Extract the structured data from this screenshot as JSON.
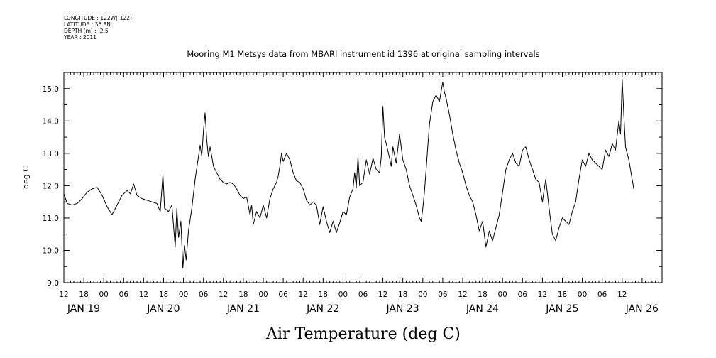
{
  "header_meta": {
    "longitude": "LONGITUDE : 122W(-122)",
    "latitude": "LATITUDE : 36.8N",
    "depth": "DEPTH (m) : -2.5",
    "year": "YEAR : 2011"
  },
  "chart_data": {
    "type": "line",
    "title": "Mooring M1 Metsys data from MBARI instrument id 1396 at original sampling intervals",
    "xlabel": "Air Temperature (deg C)",
    "ylabel": "deg C",
    "xlim": [
      12,
      192
    ],
    "ylim": [
      9.0,
      15.5
    ],
    "y_ticks": [
      "9.0",
      "10.0",
      "11.0",
      "12.0",
      "13.0",
      "14.0",
      "15.0"
    ],
    "y_tick_values": [
      9.0,
      10.0,
      11.0,
      12.0,
      13.0,
      14.0,
      15.0
    ],
    "x_hour_ticks": [
      "12",
      "18",
      "00",
      "06",
      "12",
      "18",
      "00",
      "06",
      "12",
      "18",
      "00",
      "06",
      "12",
      "18",
      "00",
      "06",
      "12",
      "18",
      "00",
      "06",
      "12",
      "18",
      "00",
      "06",
      "12",
      "18",
      "00",
      "06",
      "12"
    ],
    "x_day_labels": [
      {
        "label": "JAN 19",
        "hour": 12
      },
      {
        "label": "JAN 20",
        "hour": 36
      },
      {
        "label": "JAN 21",
        "hour": 60
      },
      {
        "label": "JAN 22",
        "hour": 84
      },
      {
        "label": "JAN 23",
        "hour": 108
      },
      {
        "label": "JAN 24",
        "hour": 132
      },
      {
        "label": "JAN 25",
        "hour": 156
      },
      {
        "label": "JAN 26",
        "hour": 180
      }
    ],
    "x_unit": "hours after 2011-01-19 00:00",
    "series": [
      {
        "values": [
          [
            12.0,
            11.75
          ],
          [
            13.0,
            11.45
          ],
          [
            14.5,
            11.4
          ],
          [
            16.0,
            11.45
          ],
          [
            17.5,
            11.6
          ],
          [
            19.0,
            11.8
          ],
          [
            20.5,
            11.9
          ],
          [
            22.0,
            11.95
          ],
          [
            23.5,
            11.7
          ],
          [
            25.0,
            11.35
          ],
          [
            26.5,
            11.1
          ],
          [
            28.0,
            11.4
          ],
          [
            29.5,
            11.7
          ],
          [
            31.0,
            11.85
          ],
          [
            32.0,
            11.75
          ],
          [
            33.0,
            12.05
          ],
          [
            34.0,
            11.7
          ],
          [
            35.5,
            11.6
          ],
          [
            37.0,
            11.55
          ],
          [
            38.5,
            11.5
          ],
          [
            40.0,
            11.45
          ],
          [
            41.0,
            11.2
          ],
          [
            41.8,
            12.35
          ],
          [
            42.3,
            11.3
          ],
          [
            43.5,
            11.2
          ],
          [
            44.5,
            11.4
          ],
          [
            45.5,
            10.1
          ],
          [
            46.0,
            11.3
          ],
          [
            46.5,
            10.4
          ],
          [
            47.2,
            10.9
          ],
          [
            47.8,
            9.45
          ],
          [
            48.3,
            10.15
          ],
          [
            48.8,
            9.7
          ],
          [
            49.5,
            10.6
          ],
          [
            50.5,
            11.3
          ],
          [
            51.5,
            12.2
          ],
          [
            52.5,
            12.9
          ],
          [
            53.0,
            13.25
          ],
          [
            53.5,
            12.9
          ],
          [
            54.0,
            13.7
          ],
          [
            54.5,
            14.25
          ],
          [
            55.0,
            13.4
          ],
          [
            55.5,
            12.9
          ],
          [
            56.0,
            13.2
          ],
          [
            57.0,
            12.6
          ],
          [
            58.0,
            12.4
          ],
          [
            59.0,
            12.2
          ],
          [
            60.0,
            12.1
          ],
          [
            61.0,
            12.05
          ],
          [
            62.0,
            12.1
          ],
          [
            63.0,
            12.05
          ],
          [
            64.0,
            11.9
          ],
          [
            65.0,
            11.7
          ],
          [
            66.0,
            11.6
          ],
          [
            67.0,
            11.65
          ],
          [
            68.0,
            11.1
          ],
          [
            68.5,
            11.4
          ],
          [
            69.0,
            10.8
          ],
          [
            70.0,
            11.2
          ],
          [
            71.0,
            11.0
          ],
          [
            72.0,
            11.4
          ],
          [
            73.0,
            11.0
          ],
          [
            74.0,
            11.6
          ],
          [
            75.0,
            11.9
          ],
          [
            76.0,
            12.1
          ],
          [
            76.5,
            12.3
          ],
          [
            77.0,
            12.6
          ],
          [
            77.5,
            13.0
          ],
          [
            78.0,
            12.75
          ],
          [
            79.0,
            13.0
          ],
          [
            80.0,
            12.8
          ],
          [
            81.0,
            12.4
          ],
          [
            82.0,
            12.15
          ],
          [
            83.0,
            12.1
          ],
          [
            84.0,
            11.9
          ],
          [
            85.0,
            11.55
          ],
          [
            86.0,
            11.4
          ],
          [
            87.0,
            11.5
          ],
          [
            88.0,
            11.4
          ],
          [
            89.0,
            10.8
          ],
          [
            90.0,
            11.35
          ],
          [
            91.0,
            10.9
          ],
          [
            92.0,
            10.55
          ],
          [
            93.0,
            10.9
          ],
          [
            94.0,
            10.55
          ],
          [
            95.0,
            10.85
          ],
          [
            96.0,
            11.2
          ],
          [
            97.0,
            11.1
          ],
          [
            98.0,
            11.65
          ],
          [
            99.0,
            11.9
          ],
          [
            99.5,
            12.4
          ],
          [
            100.0,
            11.95
          ],
          [
            100.5,
            12.9
          ],
          [
            101.0,
            12.0
          ],
          [
            102.0,
            12.1
          ],
          [
            103.0,
            12.8
          ],
          [
            104.0,
            12.35
          ],
          [
            105.0,
            12.85
          ],
          [
            106.0,
            12.5
          ],
          [
            107.0,
            12.4
          ],
          [
            107.5,
            12.9
          ],
          [
            108.0,
            14.45
          ],
          [
            108.5,
            13.5
          ],
          [
            109.0,
            13.3
          ],
          [
            110.0,
            12.85
          ],
          [
            110.5,
            12.6
          ],
          [
            111.0,
            13.2
          ],
          [
            112.0,
            12.7
          ],
          [
            113.0,
            13.6
          ],
          [
            114.0,
            12.8
          ],
          [
            115.0,
            12.5
          ],
          [
            116.0,
            12.0
          ],
          [
            117.0,
            11.7
          ],
          [
            118.0,
            11.4
          ],
          [
            119.0,
            11.0
          ],
          [
            119.5,
            10.9
          ],
          [
            120.0,
            11.3
          ],
          [
            120.5,
            11.8
          ],
          [
            121.0,
            12.5
          ],
          [
            121.5,
            13.2
          ],
          [
            122.0,
            13.9
          ],
          [
            123.0,
            14.6
          ],
          [
            124.0,
            14.8
          ],
          [
            125.0,
            14.6
          ],
          [
            126.0,
            15.2
          ],
          [
            126.5,
            14.9
          ],
          [
            127.0,
            14.7
          ],
          [
            128.0,
            14.2
          ],
          [
            129.0,
            13.6
          ],
          [
            130.0,
            13.1
          ],
          [
            131.0,
            12.7
          ],
          [
            132.0,
            12.4
          ],
          [
            133.0,
            12.0
          ],
          [
            134.0,
            11.7
          ],
          [
            135.0,
            11.5
          ],
          [
            136.0,
            11.1
          ],
          [
            137.0,
            10.6
          ],
          [
            138.0,
            10.9
          ],
          [
            139.0,
            10.1
          ],
          [
            140.0,
            10.6
          ],
          [
            141.0,
            10.3
          ],
          [
            142.0,
            10.7
          ],
          [
            143.0,
            11.1
          ],
          [
            144.0,
            11.8
          ],
          [
            145.0,
            12.5
          ],
          [
            146.0,
            12.8
          ],
          [
            147.0,
            13.0
          ],
          [
            148.0,
            12.7
          ],
          [
            149.0,
            12.6
          ],
          [
            150.0,
            13.1
          ],
          [
            151.0,
            13.2
          ],
          [
            152.0,
            12.8
          ],
          [
            153.0,
            12.5
          ],
          [
            154.0,
            12.2
          ],
          [
            155.0,
            12.1
          ],
          [
            156.0,
            11.5
          ],
          [
            157.0,
            12.2
          ],
          [
            158.0,
            11.3
          ],
          [
            159.0,
            10.5
          ],
          [
            160.0,
            10.3
          ],
          [
            161.0,
            10.7
          ],
          [
            162.0,
            11.0
          ],
          [
            163.0,
            10.9
          ],
          [
            164.0,
            10.8
          ],
          [
            165.0,
            11.2
          ],
          [
            166.0,
            11.5
          ],
          [
            167.0,
            12.2
          ],
          [
            168.0,
            12.8
          ],
          [
            169.0,
            12.6
          ],
          [
            170.0,
            13.0
          ],
          [
            171.0,
            12.8
          ],
          [
            172.0,
            12.7
          ],
          [
            173.0,
            12.6
          ],
          [
            174.0,
            12.5
          ],
          [
            175.0,
            13.1
          ],
          [
            176.0,
            12.9
          ],
          [
            177.0,
            13.3
          ],
          [
            178.0,
            13.1
          ],
          [
            179.0,
            14.0
          ],
          [
            179.5,
            13.6
          ],
          [
            180.0,
            15.3
          ],
          [
            180.5,
            14.2
          ],
          [
            181.0,
            13.2
          ],
          [
            182.0,
            12.8
          ],
          [
            183.0,
            12.2
          ],
          [
            183.5,
            11.9
          ]
        ]
      }
    ],
    "grid": false,
    "colors": {
      "line": "#000000",
      "axes": "#000000",
      "background": "#ffffff"
    }
  }
}
